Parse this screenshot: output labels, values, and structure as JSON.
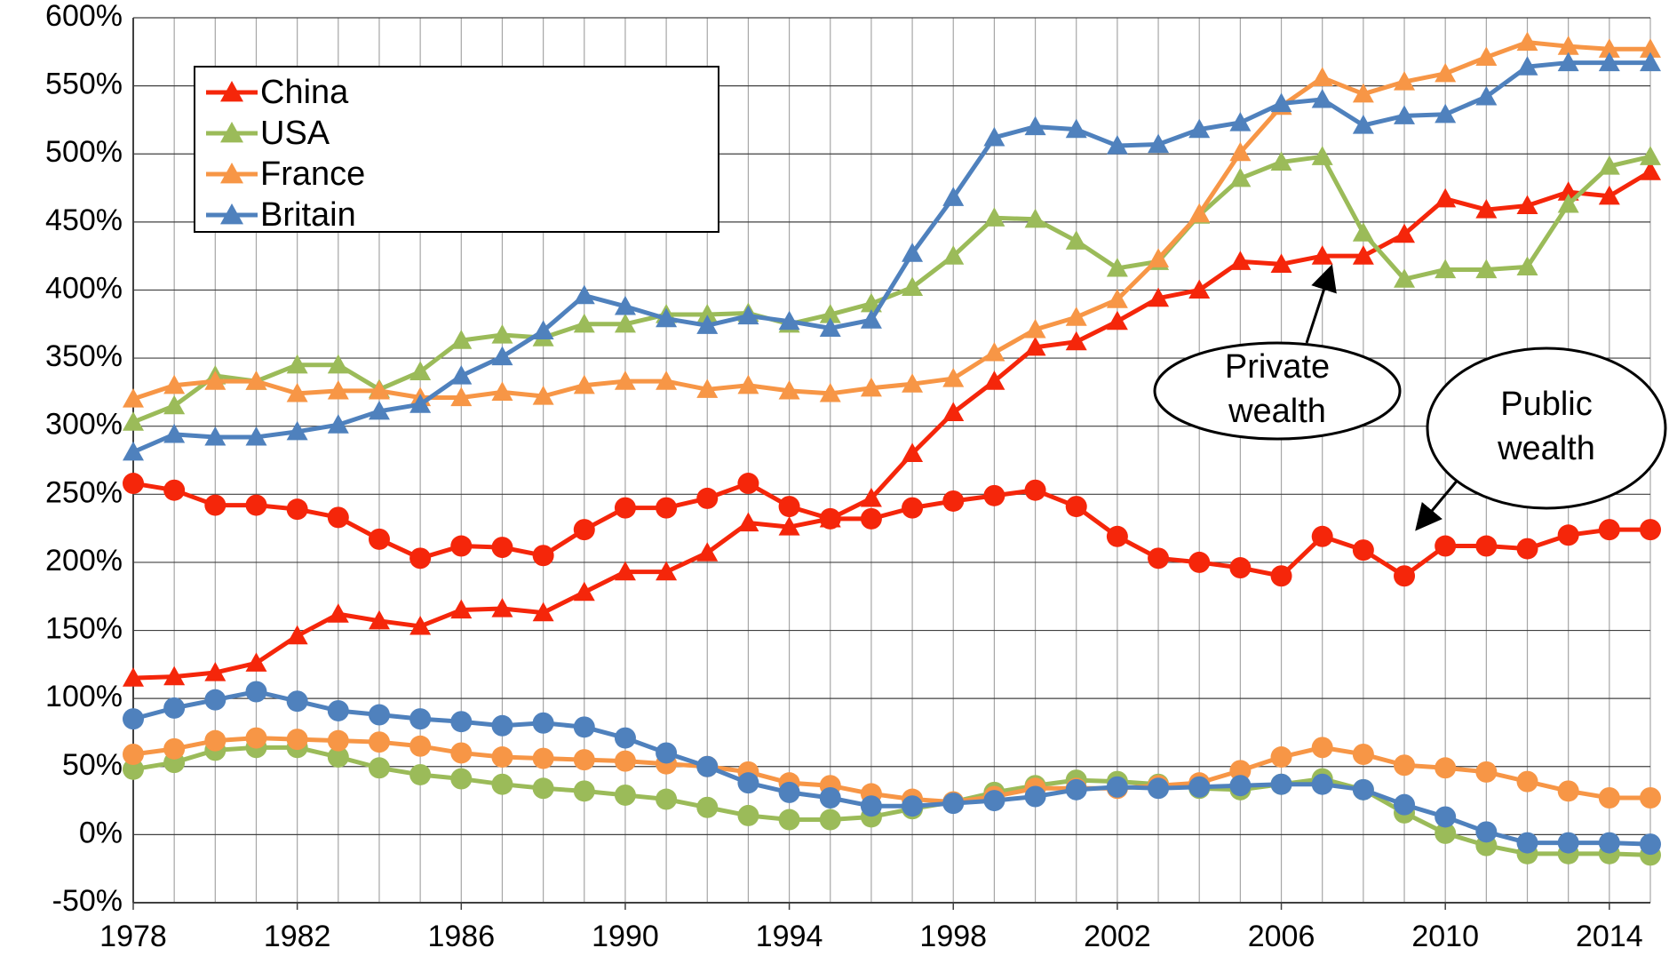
{
  "chart_data": {
    "type": "line",
    "x": [
      1978,
      1979,
      1980,
      1981,
      1982,
      1983,
      1984,
      1985,
      1986,
      1987,
      1988,
      1989,
      1990,
      1991,
      1992,
      1993,
      1994,
      1995,
      1996,
      1997,
      1998,
      1999,
      2000,
      2001,
      2002,
      2003,
      2004,
      2005,
      2006,
      2007,
      2008,
      2009,
      2010,
      2011,
      2012,
      2013,
      2014,
      2015
    ],
    "xlim": [
      1978,
      2015
    ],
    "xticks": [
      1978,
      1982,
      1986,
      1990,
      1994,
      1998,
      2002,
      2006,
      2010,
      2014
    ],
    "ylim": [
      -50,
      600
    ],
    "yticks": [
      {
        "value": -50,
        "label": "-50%"
      },
      {
        "value": 0,
        "label": "0%"
      },
      {
        "value": 50,
        "label": "50%"
      },
      {
        "value": 100,
        "label": "100%"
      },
      {
        "value": 150,
        "label": "150%"
      },
      {
        "value": 200,
        "label": "200%"
      },
      {
        "value": 250,
        "label": "250%"
      },
      {
        "value": 300,
        "label": "300%"
      },
      {
        "value": 350,
        "label": "350%"
      },
      {
        "value": 400,
        "label": "400%"
      },
      {
        "value": 450,
        "label": "450%"
      },
      {
        "value": 500,
        "label": "500%"
      },
      {
        "value": 550,
        "label": "550%"
      },
      {
        "value": 600,
        "label": "600%"
      }
    ],
    "grid": true,
    "legend": "upper left",
    "series": [
      {
        "name": "China",
        "color": "#f5260a",
        "values": [
          115,
          116,
          119,
          126,
          146,
          162,
          157,
          153,
          165,
          166,
          163,
          178,
          193,
          193,
          207,
          229,
          226,
          232,
          247,
          280,
          310,
          333,
          358,
          362,
          377,
          394,
          400,
          421,
          419,
          425,
          425,
          441,
          467,
          459,
          462,
          472,
          469,
          487
        ],
        "public_values": [
          258,
          253,
          242,
          242,
          239,
          233,
          217,
          203,
          212,
          211,
          205,
          224,
          240,
          240,
          247,
          258,
          241,
          232,
          232,
          240,
          245,
          249,
          253,
          241,
          219,
          203,
          200,
          196,
          190,
          219,
          209,
          190,
          212,
          212,
          210,
          220,
          224,
          224
        ]
      },
      {
        "name": "USA",
        "color": "#9bbb59",
        "values": [
          303,
          315,
          337,
          333,
          345,
          345,
          327,
          340,
          363,
          367,
          365,
          375,
          375,
          382,
          382,
          383,
          375,
          382,
          390,
          402,
          425,
          453,
          452,
          436,
          416,
          421,
          455,
          482,
          494,
          498,
          442,
          408,
          415,
          415,
          417,
          463,
          491,
          498
        ],
        "public_values": [
          48,
          53,
          62,
          64,
          64,
          57,
          49,
          44,
          41,
          37,
          34,
          32,
          29,
          26,
          20,
          14,
          11,
          11,
          13,
          19,
          24,
          31,
          36,
          40,
          39,
          37,
          34,
          33,
          37,
          41,
          33,
          16,
          1,
          -8,
          -14,
          -14,
          -14,
          -15
        ]
      },
      {
        "name": "France",
        "color": "#f79646",
        "values": [
          320,
          330,
          333,
          333,
          324,
          326,
          326,
          321,
          321,
          325,
          322,
          330,
          333,
          333,
          327,
          330,
          326,
          324,
          328,
          331,
          335,
          354,
          371,
          380,
          393,
          423,
          456,
          501,
          535,
          556,
          544,
          553,
          559,
          571,
          582,
          579,
          577,
          577
        ],
        "public_values": [
          59,
          63,
          69,
          71,
          70,
          69,
          68,
          65,
          60,
          57,
          56,
          55,
          54,
          52,
          50,
          46,
          38,
          36,
          30,
          26,
          24,
          28,
          34,
          34,
          34,
          36,
          38,
          47,
          57,
          64,
          59,
          51,
          49,
          46,
          39,
          32,
          27,
          27
        ]
      },
      {
        "name": "Britain",
        "color": "#4f81bd",
        "values": [
          281,
          294,
          292,
          292,
          296,
          301,
          311,
          316,
          337,
          351,
          370,
          396,
          388,
          379,
          374,
          381,
          377,
          372,
          378,
          427,
          468,
          512,
          520,
          518,
          506,
          507,
          518,
          523,
          537,
          540,
          521,
          528,
          529,
          542,
          564,
          567,
          567,
          567
        ],
        "public_values": [
          85,
          93,
          99,
          105,
          98,
          91,
          88,
          85,
          83,
          80,
          82,
          79,
          71,
          60,
          50,
          38,
          31,
          27,
          21,
          21,
          23,
          25,
          28,
          33,
          35,
          34,
          35,
          36,
          37,
          37,
          33,
          22,
          13,
          2,
          -6,
          -6,
          -6,
          -7
        ]
      }
    ],
    "annotations": [
      [
        "Private",
        "wealth"
      ],
      [
        "Public",
        "wealth"
      ]
    ]
  }
}
